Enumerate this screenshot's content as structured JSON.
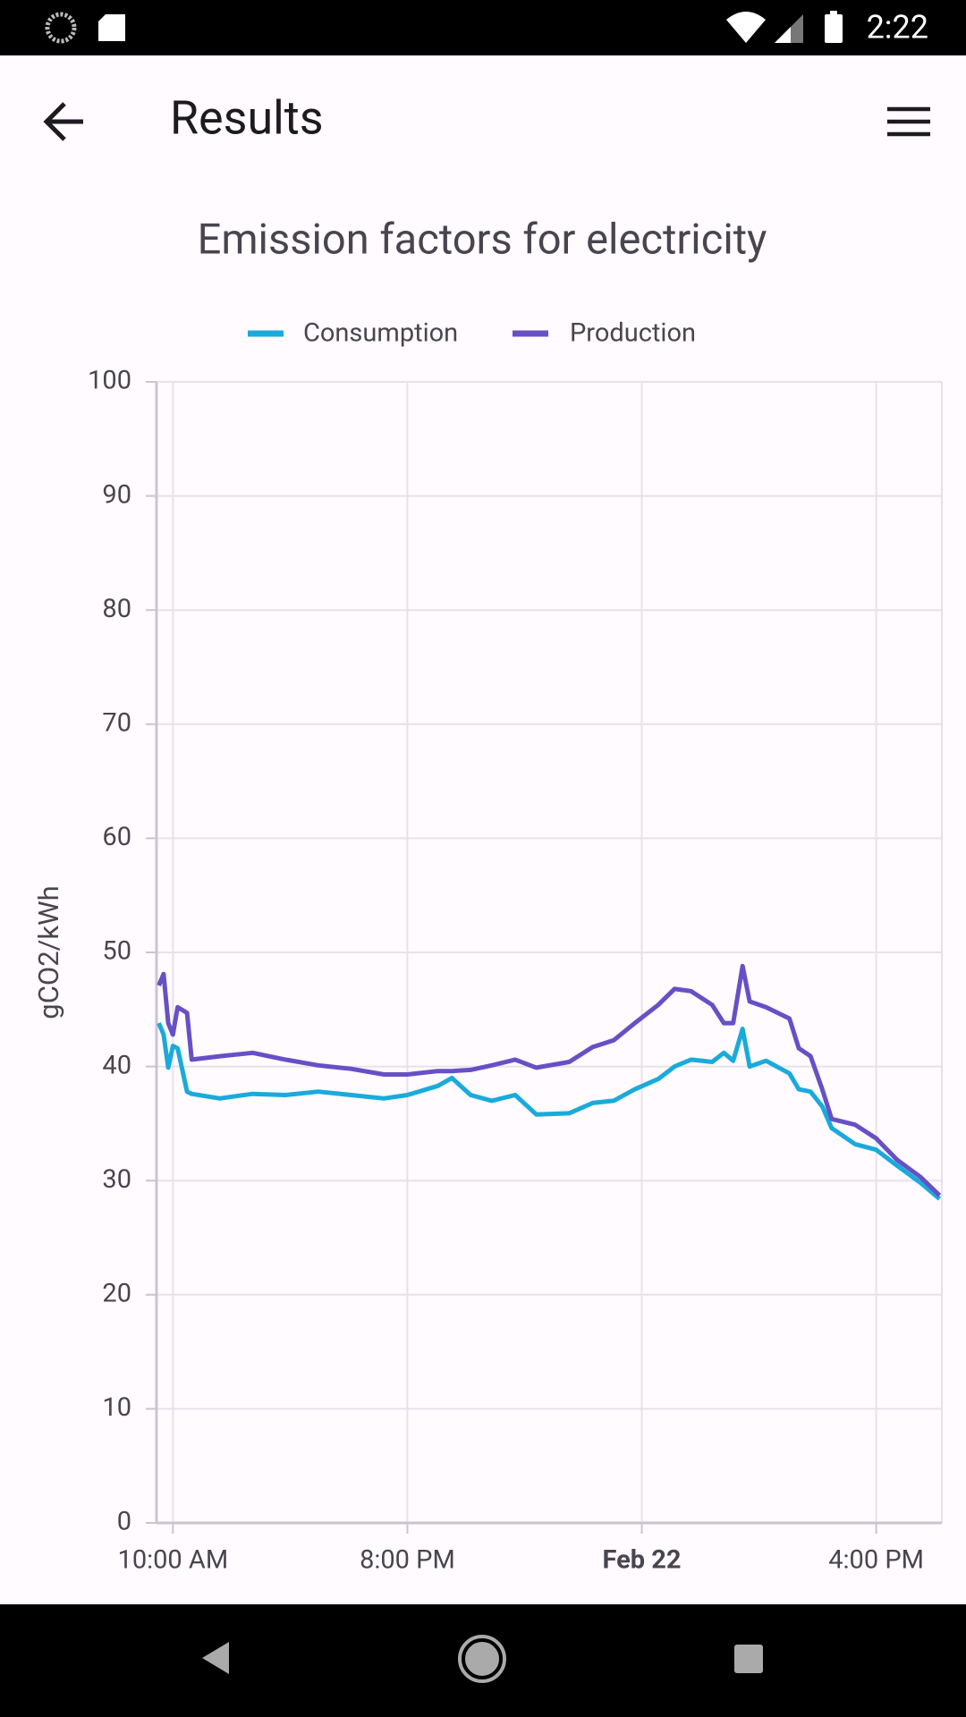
{
  "status_bar": {
    "time": "2:22"
  },
  "app_bar": {
    "title": "Results"
  },
  "chart_data": {
    "type": "line",
    "title": "Emission factors for electricity",
    "y_label": "gCO2/kWh",
    "x": [
      9.4,
      9.6,
      9.8,
      10.0,
      10.2,
      10.6,
      10.8,
      12.0,
      13.4,
      14.8,
      16.2,
      17.6,
      19.0,
      20.0,
      21.3,
      21.9,
      22.7,
      23.6,
      24.6,
      25.5,
      26.9,
      27.9,
      28.8,
      29.7,
      30.7,
      31.4,
      32.1,
      33.0,
      33.5,
      33.9,
      34.3,
      34.6,
      35.3,
      36.3,
      36.7,
      37.2,
      37.7,
      38.1,
      39.1,
      40.0,
      40.9,
      41.9,
      42.7
    ],
    "series": [
      {
        "name": "Consumption",
        "color": "#1aaadc",
        "values": [
          43.8,
          42.8,
          39.9,
          41.8,
          41.6,
          37.8,
          37.6,
          37.2,
          37.6,
          37.5,
          37.8,
          37.5,
          37.2,
          37.5,
          38.3,
          39.0,
          37.5,
          37.0,
          37.5,
          35.8,
          35.9,
          36.8,
          37.0,
          38.0,
          38.9,
          40.0,
          40.6,
          40.4,
          41.2,
          40.5,
          43.3,
          40.0,
          40.5,
          39.4,
          38.0,
          37.8,
          36.5,
          34.6,
          33.2,
          32.7,
          31.3,
          29.8,
          28.4
        ]
      },
      {
        "name": "Production",
        "color": "#6750c6",
        "values": [
          47.1,
          48.1,
          43.8,
          42.8,
          45.2,
          44.7,
          40.6,
          40.9,
          41.2,
          40.6,
          40.1,
          39.8,
          39.3,
          39.3,
          39.6,
          39.6,
          39.7,
          40.1,
          40.6,
          39.9,
          40.4,
          41.7,
          42.3,
          43.8,
          45.4,
          46.8,
          46.6,
          45.4,
          43.8,
          43.8,
          48.8,
          45.7,
          45.2,
          44.2,
          41.6,
          40.9,
          38.0,
          35.4,
          34.9,
          33.7,
          31.8,
          30.3,
          28.7
        ]
      }
    ],
    "xlim": [
      9.3,
      42.8
    ],
    "xticks": [
      {
        "value": 10,
        "label": "10:00 AM"
      },
      {
        "value": 20,
        "label": "8:00 PM"
      },
      {
        "value": 30,
        "label": "Feb 22"
      },
      {
        "value": 40,
        "label": "4:00 PM"
      }
    ],
    "ylim": [
      0,
      100
    ],
    "yticks": [
      0,
      10,
      20,
      30,
      40,
      50,
      60,
      70,
      80,
      90,
      100
    ],
    "grid": true,
    "legend": "top"
  }
}
